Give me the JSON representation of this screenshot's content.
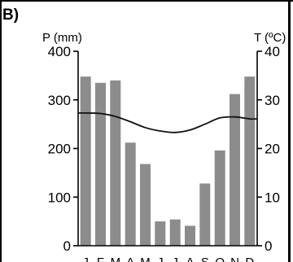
{
  "panel_label": "B)",
  "colors": {
    "bars": "#8c8c8c",
    "temperature_line": "#111111",
    "axes": "#000000",
    "background": "#ffffff"
  },
  "chart_data": {
    "type": "bar",
    "title": "",
    "categories": [
      "J",
      "F",
      "M",
      "A",
      "M",
      "J",
      "J",
      "A",
      "S",
      "O",
      "N",
      "D"
    ],
    "series": [
      {
        "name": "P (mm)",
        "type": "bar",
        "axis": "left",
        "values": [
          348,
          335,
          340,
          212,
          168,
          50,
          54,
          41,
          128,
          196,
          312,
          348
        ]
      },
      {
        "name": "T (ºC)",
        "type": "line",
        "axis": "right",
        "values": [
          27.3,
          27.2,
          26.6,
          25.5,
          24.3,
          23.6,
          23.3,
          23.8,
          25.0,
          26.3,
          26.5,
          26.1
        ]
      }
    ],
    "ylabel_left": "P (mm)",
    "ylabel_right": "T (ºC)",
    "ylim_left": [
      0,
      400
    ],
    "ylim_right": [
      0,
      40
    ],
    "yticks_left": [
      "0",
      "100",
      "200",
      "300",
      "400"
    ],
    "yticks_right": [
      "0",
      "10",
      "20",
      "30",
      "40"
    ],
    "grid": false,
    "legend": "none"
  }
}
